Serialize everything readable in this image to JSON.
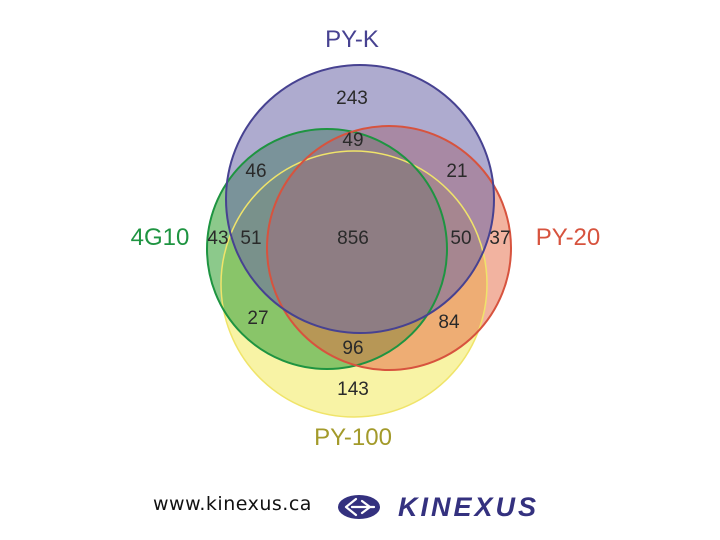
{
  "sets": [
    {
      "id": "pyk",
      "label": "PY-K",
      "color": "#474291",
      "fill": "#6d68a8"
    },
    {
      "id": "4g10",
      "label": "4G10",
      "color": "#1e9441",
      "fill": "#46a945"
    },
    {
      "id": "py20",
      "label": "PY-20",
      "color": "#d7533e",
      "fill": "#e66a44"
    },
    {
      "id": "py100",
      "label": "PY-100",
      "color": "#a39a2a",
      "fill": "#f4ea5c"
    }
  ],
  "regions": {
    "pyk_only": "243",
    "pyk_py20_top": "49",
    "pyk_4g10": "46",
    "pyk_py20": "21",
    "g10_only": "43",
    "g10_pyk_py100": "51",
    "all": "856",
    "pyk_py20_py100": "50",
    "py20_only": "37",
    "g10_py100": "27",
    "py20_py100": "84",
    "g10_py20_py100": "96",
    "py100_only": "143"
  },
  "footer": {
    "url": "www.kinexus.ca",
    "brand": "KINEXUS",
    "brand_color": "#34317f"
  }
}
